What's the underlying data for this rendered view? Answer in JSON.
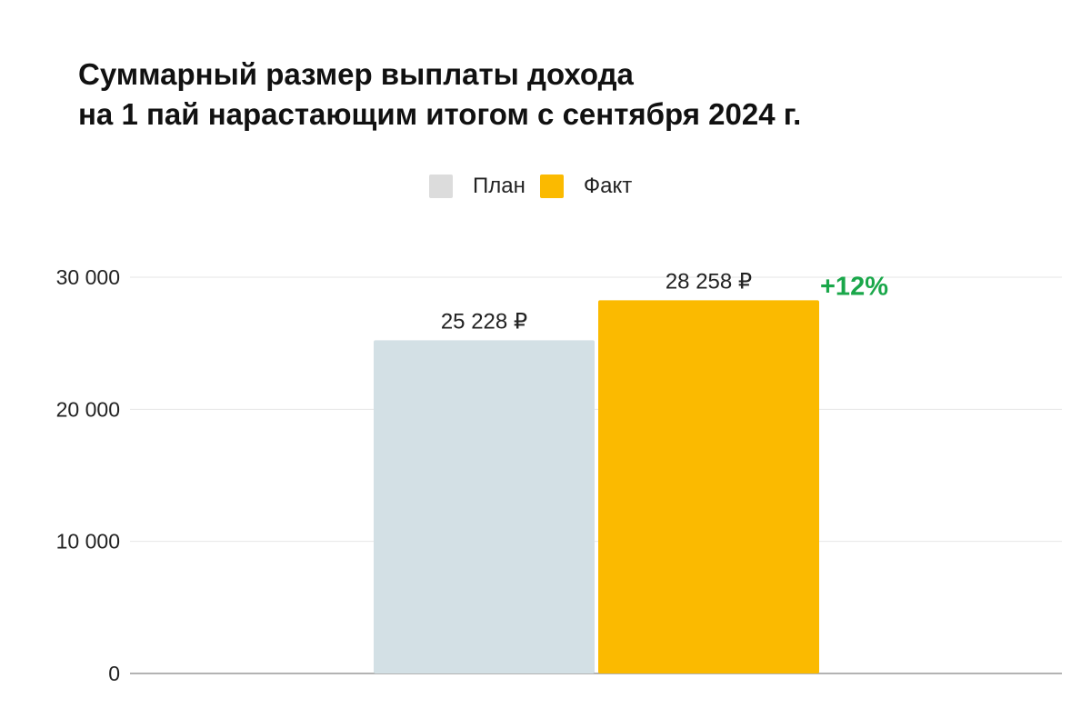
{
  "chart_data": {
    "type": "bar",
    "title": [
      "Суммарный размер выплаты дохода",
      "на 1 пай нарастающим итогом с сентября 2024 г."
    ],
    "categories": [
      ""
    ],
    "series": [
      {
        "name": "План",
        "color": "#d3e0e5",
        "values": [
          25228
        ],
        "label": "25 228 ₽"
      },
      {
        "name": "Факт",
        "color": "#fbba00",
        "values": [
          28258
        ],
        "label": "28 258 ₽"
      }
    ],
    "annotation": {
      "text": "+12%",
      "color": "#1aa74a"
    },
    "yticks": [
      0,
      10000,
      20000,
      30000
    ],
    "ytick_labels": [
      "0",
      "10 000",
      "20 000",
      "30 000"
    ],
    "ylim": [
      0,
      30000
    ],
    "grid": true,
    "legend": "top-center",
    "xlabel": "",
    "ylabel": ""
  }
}
